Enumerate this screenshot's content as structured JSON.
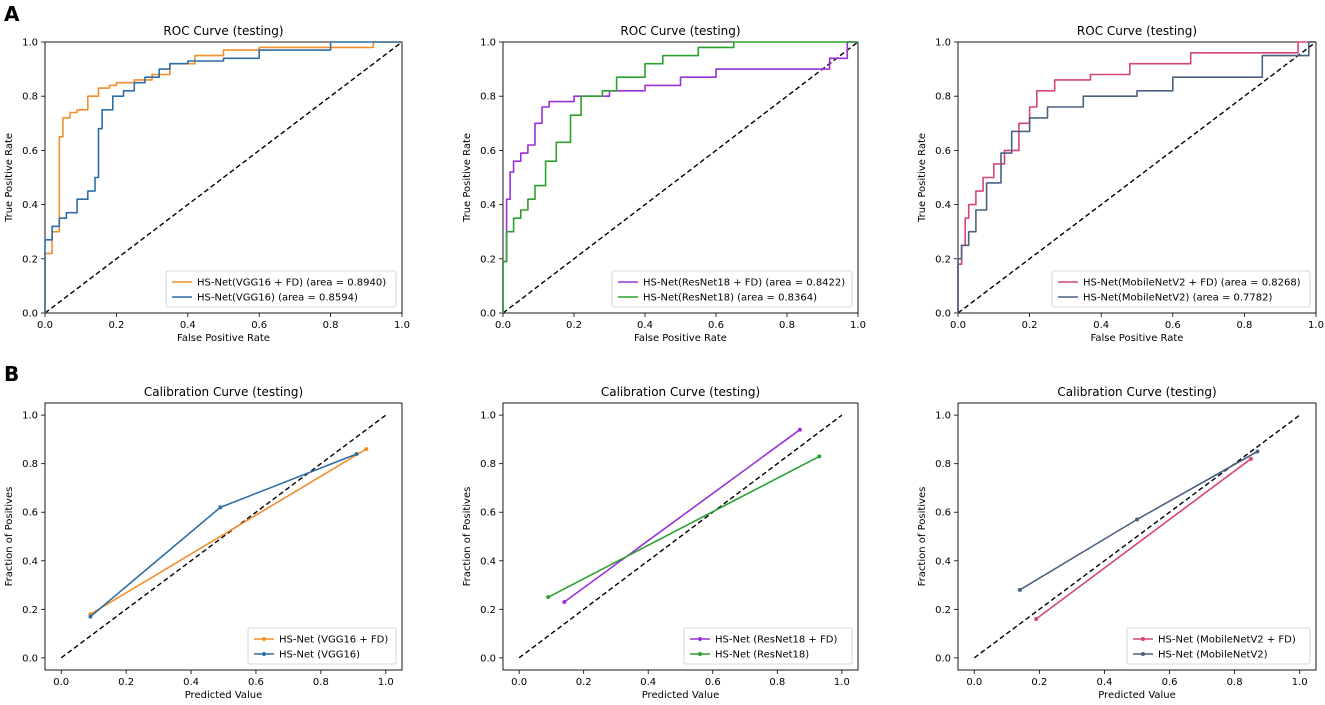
{
  "panels": {
    "a": "A",
    "b": "B"
  },
  "chart_data": [
    {
      "type": "line",
      "title": "ROC Curve (testing)",
      "xlabel": "False Positive Rate",
      "ylabel": "True Positive Rate",
      "xlim": [
        0,
        1
      ],
      "ylim": [
        0,
        1
      ],
      "ticks": [
        "0.0",
        "0.2",
        "0.4",
        "0.6",
        "0.8",
        "1.0"
      ],
      "legend_position": "lower-right",
      "series": [
        {
          "name": "HS-Net(VGG16 + FD) (area = 0.8940)",
          "color": "#f28e2b",
          "step": true,
          "markers": false,
          "x": [
            0,
            0,
            0.02,
            0.02,
            0.04,
            0.04,
            0.05,
            0.05,
            0.07,
            0.07,
            0.09,
            0.09,
            0.12,
            0.12,
            0.15,
            0.15,
            0.18,
            0.18,
            0.2,
            0.2,
            0.25,
            0.25,
            0.3,
            0.3,
            0.35,
            0.35,
            0.42,
            0.42,
            0.5,
            0.5,
            0.6,
            0.6,
            0.92,
            0.92,
            1
          ],
          "y": [
            0,
            0.22,
            0.22,
            0.3,
            0.3,
            0.65,
            0.65,
            0.72,
            0.72,
            0.74,
            0.74,
            0.75,
            0.75,
            0.8,
            0.8,
            0.83,
            0.83,
            0.84,
            0.84,
            0.85,
            0.85,
            0.86,
            0.86,
            0.88,
            0.88,
            0.92,
            0.92,
            0.95,
            0.95,
            0.97,
            0.97,
            0.98,
            0.98,
            1,
            1
          ]
        },
        {
          "name": "HS-Net(VGG16) (area = 0.8594)",
          "color": "#2f6ea5",
          "step": true,
          "markers": false,
          "x": [
            0,
            0,
            0.02,
            0.02,
            0.04,
            0.04,
            0.06,
            0.06,
            0.09,
            0.09,
            0.12,
            0.12,
            0.14,
            0.14,
            0.15,
            0.15,
            0.16,
            0.16,
            0.19,
            0.19,
            0.22,
            0.22,
            0.25,
            0.25,
            0.28,
            0.28,
            0.32,
            0.32,
            0.35,
            0.35,
            0.4,
            0.4,
            0.5,
            0.5,
            0.6,
            0.6,
            0.8,
            0.8,
            1
          ],
          "y": [
            0,
            0.27,
            0.27,
            0.32,
            0.32,
            0.35,
            0.35,
            0.37,
            0.37,
            0.42,
            0.42,
            0.45,
            0.45,
            0.5,
            0.5,
            0.68,
            0.68,
            0.75,
            0.75,
            0.8,
            0.8,
            0.82,
            0.82,
            0.85,
            0.85,
            0.87,
            0.87,
            0.9,
            0.9,
            0.92,
            0.92,
            0.93,
            0.93,
            0.94,
            0.94,
            0.97,
            0.97,
            1,
            1
          ]
        }
      ]
    },
    {
      "type": "line",
      "title": "ROC Curve (testing)",
      "xlabel": "False Positive Rate",
      "ylabel": "True Positive Rate",
      "xlim": [
        0,
        1
      ],
      "ylim": [
        0,
        1
      ],
      "ticks": [
        "0.0",
        "0.2",
        "0.4",
        "0.6",
        "0.8",
        "1.0"
      ],
      "legend_position": "lower-right",
      "series": [
        {
          "name": "HS-Net(ResNet18 + FD) (area = 0.8422)",
          "color": "#9b30d9",
          "step": true,
          "markers": false,
          "x": [
            0,
            0,
            0.01,
            0.01,
            0.02,
            0.02,
            0.03,
            0.03,
            0.05,
            0.05,
            0.07,
            0.07,
            0.09,
            0.09,
            0.11,
            0.11,
            0.13,
            0.13,
            0.2,
            0.2,
            0.3,
            0.3,
            0.4,
            0.4,
            0.5,
            0.5,
            0.6,
            0.6,
            0.92,
            0.92,
            0.97,
            0.97,
            1
          ],
          "y": [
            0,
            0.19,
            0.19,
            0.42,
            0.42,
            0.52,
            0.52,
            0.56,
            0.56,
            0.59,
            0.59,
            0.62,
            0.62,
            0.7,
            0.7,
            0.76,
            0.76,
            0.78,
            0.78,
            0.8,
            0.8,
            0.82,
            0.82,
            0.84,
            0.84,
            0.87,
            0.87,
            0.9,
            0.9,
            0.94,
            0.94,
            1,
            1
          ]
        },
        {
          "name": "HS-Net(ResNet18) (area = 0.8364)",
          "color": "#2ca02c",
          "step": true,
          "markers": false,
          "x": [
            0,
            0,
            0.01,
            0.01,
            0.03,
            0.03,
            0.05,
            0.05,
            0.07,
            0.07,
            0.09,
            0.09,
            0.12,
            0.12,
            0.15,
            0.15,
            0.19,
            0.19,
            0.22,
            0.22,
            0.28,
            0.28,
            0.32,
            0.32,
            0.4,
            0.4,
            0.45,
            0.45,
            0.55,
            0.55,
            0.65,
            0.65,
            1
          ],
          "y": [
            0,
            0.19,
            0.19,
            0.3,
            0.3,
            0.35,
            0.35,
            0.38,
            0.38,
            0.42,
            0.42,
            0.47,
            0.47,
            0.56,
            0.56,
            0.63,
            0.63,
            0.73,
            0.73,
            0.8,
            0.8,
            0.82,
            0.82,
            0.87,
            0.87,
            0.92,
            0.92,
            0.95,
            0.95,
            0.98,
            0.98,
            1,
            1
          ]
        }
      ]
    },
    {
      "type": "line",
      "title": "ROC Curve (testing)",
      "xlabel": "False Positive Rate",
      "ylabel": "True Positive Rate",
      "xlim": [
        0,
        1
      ],
      "ylim": [
        0,
        1
      ],
      "ticks": [
        "0.0",
        "0.2",
        "0.4",
        "0.6",
        "0.8",
        "1.0"
      ],
      "legend_position": "lower-right",
      "series": [
        {
          "name": "HS-Net(MobileNetV2 + FD) (area = 0.8268)",
          "color": "#d6457a",
          "step": true,
          "markers": false,
          "x": [
            0,
            0,
            0.01,
            0.01,
            0.02,
            0.02,
            0.03,
            0.03,
            0.05,
            0.05,
            0.07,
            0.07,
            0.1,
            0.1,
            0.13,
            0.13,
            0.17,
            0.17,
            0.2,
            0.2,
            0.22,
            0.22,
            0.27,
            0.27,
            0.37,
            0.37,
            0.48,
            0.48,
            0.65,
            0.65,
            0.95,
            0.95,
            1
          ],
          "y": [
            0,
            0.18,
            0.18,
            0.25,
            0.25,
            0.35,
            0.35,
            0.4,
            0.4,
            0.45,
            0.45,
            0.5,
            0.5,
            0.55,
            0.55,
            0.6,
            0.6,
            0.7,
            0.7,
            0.76,
            0.76,
            0.82,
            0.82,
            0.86,
            0.86,
            0.88,
            0.88,
            0.92,
            0.92,
            0.96,
            0.96,
            1,
            1
          ]
        },
        {
          "name": "HS-Net(MobileNetV2) (area = 0.7782)",
          "color": "#4a6280",
          "step": true,
          "markers": false,
          "x": [
            0,
            0,
            0.01,
            0.01,
            0.03,
            0.03,
            0.05,
            0.05,
            0.08,
            0.08,
            0.12,
            0.12,
            0.15,
            0.15,
            0.2,
            0.2,
            0.25,
            0.25,
            0.35,
            0.35,
            0.5,
            0.5,
            0.6,
            0.6,
            0.85,
            0.85,
            0.98,
            0.98,
            1
          ],
          "y": [
            0,
            0.2,
            0.2,
            0.25,
            0.25,
            0.3,
            0.3,
            0.38,
            0.38,
            0.48,
            0.48,
            0.59,
            0.59,
            0.67,
            0.67,
            0.72,
            0.72,
            0.76,
            0.76,
            0.8,
            0.8,
            0.82,
            0.82,
            0.87,
            0.87,
            0.95,
            0.95,
            1,
            1
          ]
        }
      ]
    },
    {
      "type": "line",
      "title": "Calibration Curve (testing)",
      "xlabel": "Predicted Value",
      "ylabel": "Fraction of Positives",
      "xlim": [
        -0.05,
        1.05
      ],
      "ylim": [
        -0.05,
        1.05
      ],
      "ticks": [
        "0.0",
        "0.2",
        "0.4",
        "0.6",
        "0.8",
        "1.0"
      ],
      "legend_position": "lower-right",
      "series": [
        {
          "name": "HS-Net (VGG16 + FD)",
          "color": "#f28e2b",
          "step": false,
          "markers": true,
          "x": [
            0.09,
            0.94
          ],
          "y": [
            0.18,
            0.86
          ]
        },
        {
          "name": "HS-Net (VGG16)",
          "color": "#2f6ea5",
          "step": false,
          "markers": true,
          "x": [
            0.09,
            0.49,
            0.91
          ],
          "y": [
            0.17,
            0.62,
            0.84
          ]
        }
      ]
    },
    {
      "type": "line",
      "title": "Calibration Curve (testing)",
      "xlabel": "Predicted Value",
      "ylabel": "Fraction of Positives",
      "xlim": [
        -0.05,
        1.05
      ],
      "ylim": [
        -0.05,
        1.05
      ],
      "ticks": [
        "0.0",
        "0.2",
        "0.4",
        "0.6",
        "0.8",
        "1.0"
      ],
      "legend_position": "lower-right",
      "series": [
        {
          "name": "HS-Net (ResNet18 + FD)",
          "color": "#9b30d9",
          "step": false,
          "markers": true,
          "x": [
            0.14,
            0.87
          ],
          "y": [
            0.23,
            0.94
          ]
        },
        {
          "name": "HS-Net (ResNet18)",
          "color": "#2ca02c",
          "step": false,
          "markers": true,
          "x": [
            0.09,
            0.93
          ],
          "y": [
            0.25,
            0.83
          ]
        }
      ]
    },
    {
      "type": "line",
      "title": "Calibration Curve (testing)",
      "xlabel": "Predicted Value",
      "ylabel": "Fraction of Positives",
      "xlim": [
        -0.05,
        1.05
      ],
      "ylim": [
        -0.05,
        1.05
      ],
      "ticks": [
        "0.0",
        "0.2",
        "0.4",
        "0.6",
        "0.8",
        "1.0"
      ],
      "legend_position": "lower-right",
      "series": [
        {
          "name": "HS-Net (MobileNetV2 + FD)",
          "color": "#d6457a",
          "step": false,
          "markers": true,
          "x": [
            0.19,
            0.85
          ],
          "y": [
            0.16,
            0.82
          ]
        },
        {
          "name": "HS-Net (MobileNetV2)",
          "color": "#4a6280",
          "step": false,
          "markers": true,
          "x": [
            0.14,
            0.5,
            0.87
          ],
          "y": [
            0.28,
            0.57,
            0.85
          ]
        }
      ]
    }
  ]
}
